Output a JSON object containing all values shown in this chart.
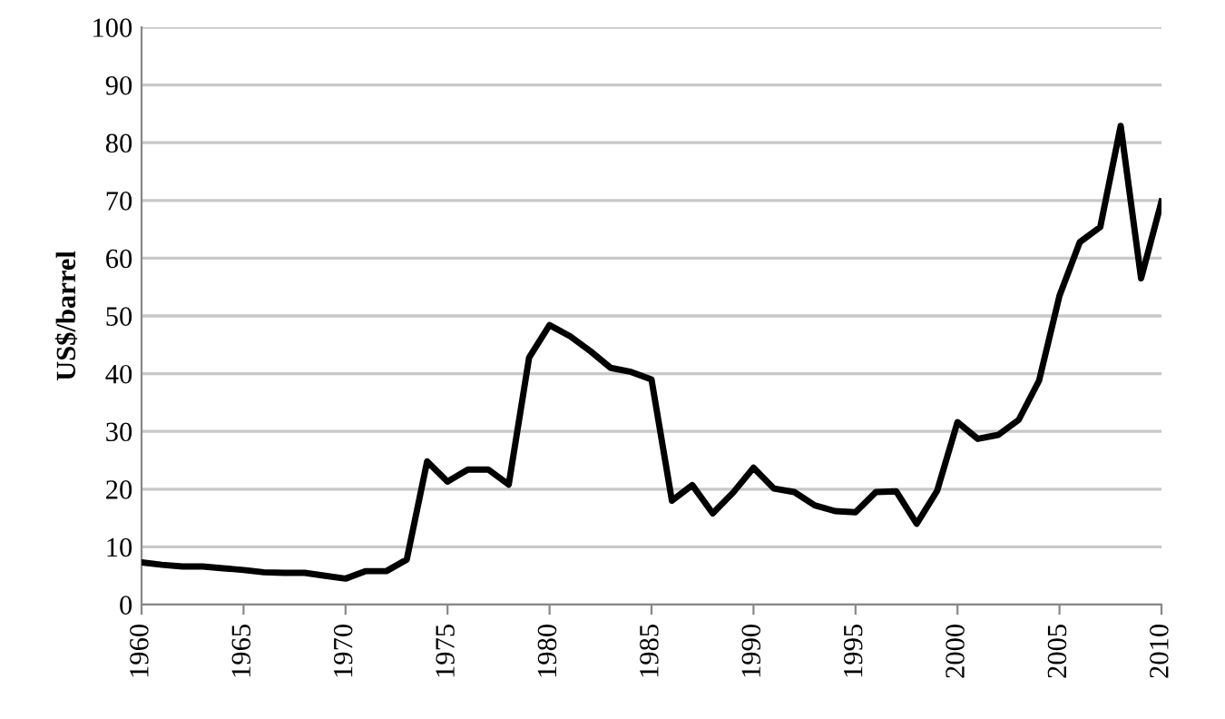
{
  "chart_data": {
    "type": "line",
    "ylabel": "US$/barrel",
    "x": [
      1960,
      1961,
      1962,
      1963,
      1964,
      1965,
      1966,
      1967,
      1968,
      1969,
      1970,
      1971,
      1972,
      1973,
      1974,
      1975,
      1976,
      1977,
      1978,
      1979,
      1980,
      1981,
      1982,
      1983,
      1984,
      1985,
      1986,
      1987,
      1988,
      1989,
      1990,
      1991,
      1992,
      1993,
      1994,
      1995,
      1996,
      1997,
      1998,
      1999,
      2000,
      2001,
      2002,
      2003,
      2004,
      2005,
      2006,
      2007,
      2008,
      2009,
      2010
    ],
    "series": [
      {
        "color": "#000000",
        "values": [
          7.3,
          6.9,
          6.6,
          6.6,
          6.3,
          6.0,
          5.6,
          5.5,
          5.5,
          5.0,
          4.5,
          5.8,
          5.8,
          7.8,
          24.8,
          21.3,
          23.4,
          23.4,
          20.8,
          42.8,
          48.4,
          46.5,
          43.9,
          41.0,
          40.3,
          39.0,
          18.0,
          20.7,
          15.8,
          19.4,
          23.7,
          20.1,
          19.5,
          17.2,
          16.2,
          16.0,
          19.5,
          19.6,
          14.0,
          19.7,
          31.6,
          28.7,
          29.4,
          32.0,
          38.8,
          53.5,
          62.8,
          65.4,
          82.9,
          56.5,
          69.8
        ]
      }
    ],
    "xlim": [
      1960,
      2010
    ],
    "xticks": [
      1960,
      1965,
      1970,
      1975,
      1980,
      1985,
      1990,
      1995,
      2000,
      2005,
      2010
    ],
    "ylim": [
      0,
      100
    ],
    "yticks": [
      0,
      10,
      20,
      30,
      40,
      50,
      60,
      70,
      80,
      90,
      100
    ],
    "grid": "y",
    "legend": false,
    "marker": "none",
    "line_style": "solid"
  }
}
